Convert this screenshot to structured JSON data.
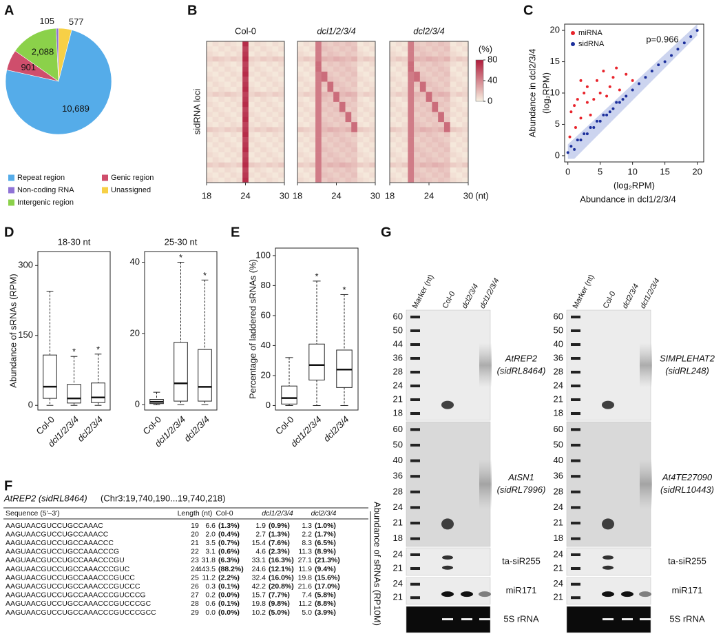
{
  "panel_labels": [
    "A",
    "B",
    "C",
    "D",
    "E",
    "F",
    "G"
  ],
  "chart_data": [
    {
      "type": "pie",
      "categories": [
        "Unassigned",
        "Repeat region",
        "Genic region",
        "Intergenic region",
        "Non-coding RNA"
      ],
      "values": [
        577,
        10689,
        901,
        2088,
        105
      ],
      "value_labels": [
        "577",
        "10,689",
        "901",
        "2,088",
        "105"
      ],
      "colors": [
        "#f7d046",
        "#55ace9",
        "#cf4e6c",
        "#8bd14a",
        "#8f73d6"
      ]
    },
    {
      "type": "heatmap",
      "titles": [
        "Col-0",
        "dcl1/2/3/4",
        "dcl2/3/4"
      ],
      "ylabel": "sidRNA loci",
      "xlim": [
        18,
        30
      ],
      "xticks": [
        18,
        24,
        30
      ],
      "xunit": "(nt)",
      "colorbar_title": "(%)",
      "clim": [
        0,
        80
      ],
      "colorbar_ticks": [
        0,
        40,
        80
      ],
      "colors": [
        "#f8f1e2",
        "#b01c3c"
      ]
    },
    {
      "type": "scatter",
      "ylabel": "Abundance in dcl2/3/4",
      "ylabel_unit": "(log₂RPM)",
      "xlabel": "Abundance in dcl1/2/3/4",
      "xlabel_unit": "(log₂RPM)",
      "annotation": "p=0.966",
      "xlim": [
        -0.5,
        21
      ],
      "ylim": [
        -1,
        21
      ],
      "xticks": [
        0,
        5,
        10,
        15,
        20
      ],
      "yticks": [
        0,
        5,
        10,
        15,
        20
      ],
      "series": [
        {
          "name": "miRNA",
          "color": "#e8242c",
          "x": [
            0.5,
            1,
            1.5,
            2,
            2.5,
            3,
            3,
            4,
            4.5,
            5,
            5.5,
            6,
            6.5,
            7,
            7.5,
            8,
            9,
            10,
            0.3,
            1.2,
            2,
            3.5
          ],
          "y": [
            7,
            8,
            9,
            6,
            10,
            8.5,
            11,
            9,
            12,
            10,
            13.5,
            9.5,
            11,
            12.5,
            14,
            10.5,
            13,
            12,
            3,
            4.5,
            12,
            6.5
          ]
        },
        {
          "name": "sidRNA",
          "color": "#1c2f9c",
          "x": [
            0,
            0.5,
            1,
            1.5,
            2,
            2.5,
            3,
            3.5,
            4,
            4.5,
            5,
            5.5,
            6,
            6.5,
            7,
            7.5,
            8,
            8.5,
            9,
            10,
            11,
            12,
            13,
            14,
            15,
            16,
            17,
            18,
            19,
            20
          ],
          "y": [
            0.5,
            1.5,
            1,
            2.5,
            2.5,
            3.5,
            3.5,
            4.5,
            4.5,
            5.5,
            5.5,
            6.5,
            6.5,
            7,
            7.5,
            8.5,
            8.5,
            9,
            9.5,
            10.5,
            11.5,
            12.5,
            13.5,
            14.5,
            15,
            16,
            17,
            18,
            19,
            20
          ]
        }
      ]
    },
    {
      "type": "box",
      "title": "18-30 nt",
      "ylabel": "Abundance of sRNAs (RPM)",
      "categories": [
        "Col-0",
        "dcl1/2/3/4",
        "dcl2/3/4"
      ],
      "ylim": [
        -10,
        330
      ],
      "yticks": [
        0,
        150,
        300
      ],
      "whislo": [
        0,
        0,
        0
      ],
      "q1": [
        15,
        5,
        6
      ],
      "med": [
        40,
        15,
        17
      ],
      "q3": [
        108,
        45,
        48
      ],
      "whishi": [
        245,
        105,
        110
      ],
      "annotations": [
        {
          "x": "dcl1/2/3/4",
          "label": "*"
        },
        {
          "x": "dcl2/3/4",
          "label": "*"
        }
      ]
    },
    {
      "type": "box",
      "title": "25-30 nt",
      "categories": [
        "Col-0",
        "dcl1/2/3/4",
        "dcl2/3/4"
      ],
      "ylim": [
        -1.5,
        43
      ],
      "yticks": [
        0,
        20,
        40
      ],
      "whislo": [
        0,
        0,
        0
      ],
      "q1": [
        0.3,
        1,
        1
      ],
      "med": [
        0.8,
        6,
        5
      ],
      "q3": [
        1.5,
        17.5,
        15.5
      ],
      "whishi": [
        3.5,
        40,
        35
      ],
      "annotations": [
        {
          "x": "dcl1/2/3/4",
          "label": "*"
        },
        {
          "x": "dcl2/3/4",
          "label": "*"
        }
      ]
    },
    {
      "type": "box",
      "ylabel": "Percentage of laddered sRNAs (%)",
      "categories": [
        "Col-0",
        "dcl1/2/3/4",
        "dcl2/3/4"
      ],
      "ylim": [
        -3,
        105
      ],
      "yticks": [
        0,
        20,
        40,
        60,
        80,
        100
      ],
      "whislo": [
        0,
        0,
        0
      ],
      "q1": [
        1,
        17,
        12
      ],
      "med": [
        5,
        27,
        24
      ],
      "q3": [
        13,
        41,
        37
      ],
      "whishi": [
        32,
        83,
        74
      ],
      "annotations": [
        {
          "x": "dcl1/2/3/4",
          "label": "*"
        },
        {
          "x": "dcl2/3/4",
          "label": "*"
        }
      ]
    }
  ],
  "table": {
    "title": "AtREP2 (sidRL8464)",
    "locus": "(Chr3:19,740,190...19,740,218)",
    "header": [
      "Sequence (5'–3')",
      "Length (nt)",
      "Col-0",
      "dcl1/2/3/4",
      "dcl2/3/4"
    ],
    "side_label": "Abundance of sRNAs (RP10M)",
    "rows": [
      [
        "AAGUAACGUCCUGCCAAAC",
        "19",
        "6.6",
        "(1.3%)",
        "1.9",
        "(0.9%)",
        "1.3",
        "(1.0%)"
      ],
      [
        "AAGUAACGUCCUGCCAAACC",
        "20",
        "2.0",
        "(0.4%)",
        "2.7",
        "(1.3%)",
        "2.2",
        "(1.7%)"
      ],
      [
        "AAGUAACGUCCUGCCAAACCC",
        "21",
        "3.5",
        "(0.7%)",
        "15.4",
        "(7.6%)",
        "8.3",
        "(6.5%)"
      ],
      [
        "AAGUAACGUCCUGCCAAACCCG",
        "22",
        "3.1",
        "(0.6%)",
        "4.6",
        "(2.3%)",
        "11.3",
        "(8.9%)"
      ],
      [
        "AAGUAACGUCCUGCCAAACCCGU",
        "23",
        "31.8",
        "(6.3%)",
        "33.1",
        "(16.3%)",
        "27.1",
        "(21.3%)"
      ],
      [
        "AAGUAACGUCCUGCCAAACCCGUC",
        "24",
        "443.5",
        "(88.2%)",
        "24.6",
        "(12.1%)",
        "11.9",
        "(9.4%)"
      ],
      [
        "AAGUAACGUCCUGCCAAACCCGUCC",
        "25",
        "11.2",
        "(2.2%)",
        "32.4",
        "(16.0%)",
        "19.8",
        "(15.6%)"
      ],
      [
        "AAGUAACGUCCUGCCAAACCCGUCCC",
        "26",
        "0.3",
        "(0.1%)",
        "42.2",
        "(20.8%)",
        "21.6",
        "(17.0%)"
      ],
      [
        "AAGUAACGUCCUGCCAAACCCGUCCCG",
        "27",
        "0.2",
        "(0.0%)",
        "15.7",
        "(7.7%)",
        "7.4",
        "(5.8%)"
      ],
      [
        "AAGUAACGUCCUGCCAAACCCGUCCCGC",
        "28",
        "0.6",
        "(0.1%)",
        "19.8",
        "(9.8%)",
        "11.2",
        "(8.8%)"
      ],
      [
        "AAGUAACGUCCUGCCAAACCCGUCCCGCC",
        "29",
        "0.0",
        "(0.0%)",
        "10.2",
        "(5.0%)",
        "5.0",
        "(3.9%)"
      ]
    ]
  },
  "blots": [
    {
      "lanes": [
        "Marker (nt)",
        "Col-0",
        "dcl2/3/4",
        "dcl1/2/3/4"
      ],
      "panels": [
        {
          "markers": [
            "60",
            "50",
            "44",
            "36",
            "28",
            "24",
            "21",
            "18"
          ],
          "label": [
            "AtREP2",
            "(sidRL8464)"
          ]
        },
        {
          "markers": [
            "60",
            "50",
            "40",
            "36",
            "28",
            "24",
            "21",
            "18"
          ],
          "label": [
            "AtSN1",
            "(sidRL7996)"
          ]
        },
        {
          "markers": [
            "24",
            "21"
          ],
          "label": [
            "ta-siR255"
          ]
        },
        {
          "markers": [
            "24",
            "21"
          ],
          "label": [
            "miR171"
          ]
        },
        {
          "label": [
            "5S rRNA"
          ]
        }
      ]
    },
    {
      "lanes": [
        "Marker (nt)",
        "Col-0",
        "dcl2/3/4",
        "dcl1/2/3/4"
      ],
      "panels": [
        {
          "markers": [
            "60",
            "50",
            "40",
            "36",
            "28",
            "24",
            "21",
            "18"
          ],
          "label": [
            "SIMPLEHAT2",
            "(sidRL248)"
          ]
        },
        {
          "markers": [
            "60",
            "50",
            "40",
            "36",
            "28",
            "24",
            "21",
            "18"
          ],
          "label": [
            "At4TE27090",
            "(sidRL10443)"
          ]
        },
        {
          "markers": [
            "24",
            "21"
          ],
          "label": [
            "ta-siR255"
          ]
        },
        {
          "markers": [
            "24",
            "21"
          ],
          "label": [
            "miR171"
          ]
        },
        {
          "label": [
            "5S rRNA"
          ]
        }
      ]
    }
  ]
}
